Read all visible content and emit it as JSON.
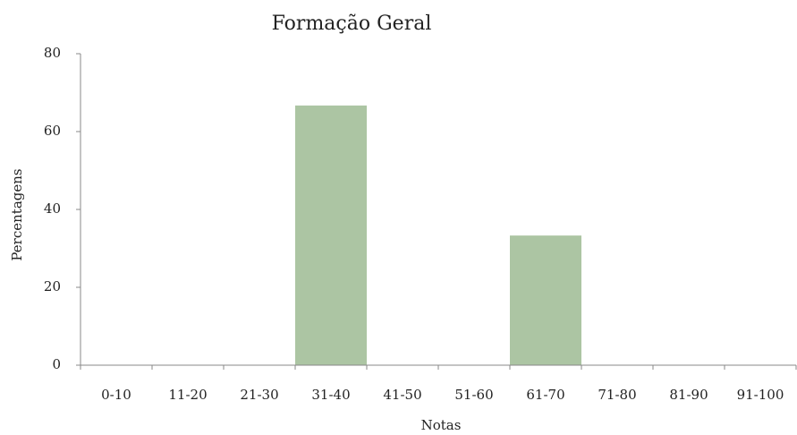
{
  "chart_data": {
    "type": "bar",
    "title": "Formação Geral",
    "x_label": "Notas",
    "y_label": "Percentagens",
    "categories": [
      "0-10",
      "11-20",
      "21-30",
      "31-40",
      "41-50",
      "51-60",
      "61-70",
      "71-80",
      "81-90",
      "91-100"
    ],
    "values": [
      0,
      0,
      0,
      66.7,
      0,
      0,
      33.3,
      0,
      0,
      0
    ],
    "color": "#acc5a3",
    "ylim": [
      0,
      80
    ],
    "yticks": [
      0,
      20,
      40,
      60,
      80
    ],
    "grid": false
  }
}
